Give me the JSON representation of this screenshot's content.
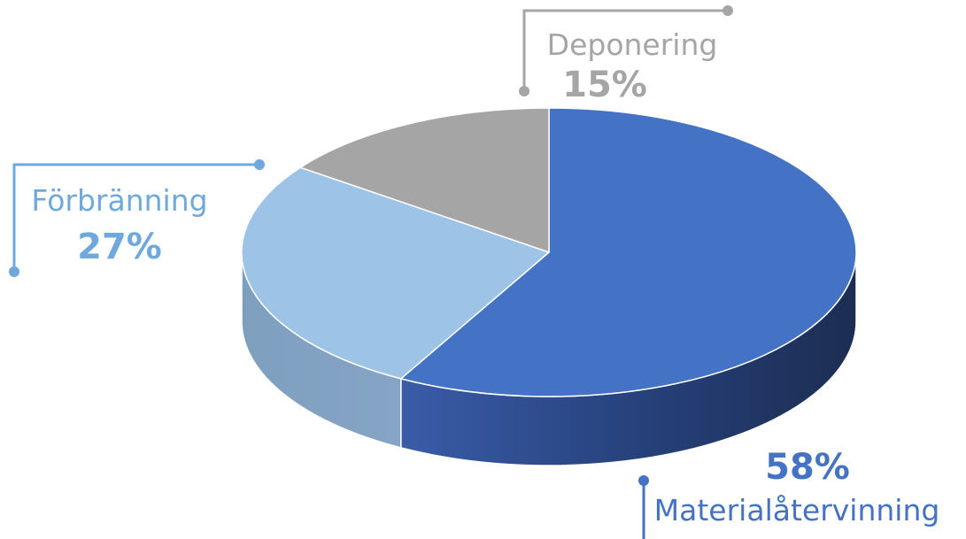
{
  "chart_data": {
    "type": "pie",
    "title": "",
    "categories": [
      "Materialåtervinning",
      "Förbränning",
      "Deponering"
    ],
    "values": [
      58,
      27,
      15
    ],
    "data_labels": [
      "58%",
      "27%",
      "15%"
    ],
    "colors": {
      "Materialåtervinning": "#4472C4",
      "Förbränning": "#9DC3E6",
      "Deponering": "#A5A5A5",
      "label_materialatervinning": "#4472C4",
      "label_forbranning": "#6FA8DC",
      "label_deponering": "#A5A5A5"
    },
    "style": "3d"
  }
}
